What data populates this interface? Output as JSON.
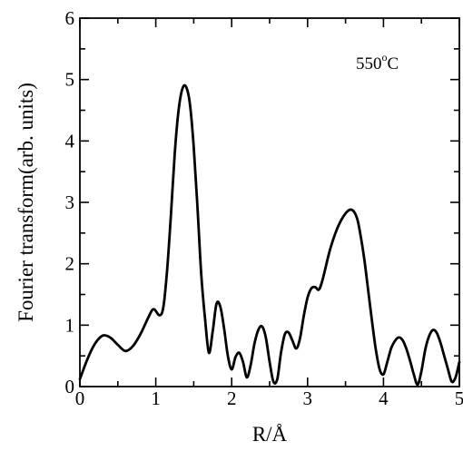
{
  "chart_data": {
    "type": "line",
    "title": "",
    "xlabel": "R/Å",
    "ylabel": "Fourier transform(arb. units)",
    "xlim": [
      0,
      5
    ],
    "ylim": [
      0,
      6
    ],
    "x_ticks": [
      "0",
      "1",
      "2",
      "3",
      "4",
      "5"
    ],
    "y_ticks": [
      "0",
      "1",
      "2",
      "3",
      "4",
      "5",
      "6"
    ],
    "grid": false,
    "annotation": {
      "base": "550",
      "sup": "o",
      "unit": "C",
      "position": "top-right"
    },
    "series": [
      {
        "color": "#000000",
        "x": [
          0.0,
          0.1,
          0.2,
          0.3,
          0.4,
          0.5,
          0.6,
          0.7,
          0.8,
          0.9,
          0.97,
          1.05,
          1.1,
          1.15,
          1.2,
          1.25,
          1.3,
          1.35,
          1.4,
          1.45,
          1.5,
          1.55,
          1.6,
          1.65,
          1.7,
          1.75,
          1.8,
          1.85,
          1.9,
          1.95,
          2.0,
          2.05,
          2.1,
          2.15,
          2.2,
          2.25,
          2.3,
          2.35,
          2.4,
          2.45,
          2.5,
          2.55,
          2.6,
          2.65,
          2.7,
          2.75,
          2.8,
          2.85,
          2.9,
          2.95,
          3.0,
          3.05,
          3.1,
          3.15,
          3.2,
          3.3,
          3.4,
          3.5,
          3.58,
          3.65,
          3.7,
          3.75,
          3.8,
          3.85,
          3.9,
          3.95,
          4.0,
          4.05,
          4.1,
          4.15,
          4.2,
          4.25,
          4.3,
          4.35,
          4.4,
          4.45,
          4.5,
          4.55,
          4.6,
          4.65,
          4.7,
          4.75,
          4.8,
          4.85,
          4.9,
          4.95,
          5.0
        ],
        "y": [
          0.12,
          0.45,
          0.7,
          0.83,
          0.8,
          0.68,
          0.58,
          0.66,
          0.86,
          1.12,
          1.26,
          1.16,
          1.3,
          1.9,
          2.8,
          3.8,
          4.5,
          4.85,
          4.88,
          4.6,
          3.9,
          2.9,
          1.8,
          1.1,
          0.55,
          0.9,
          1.35,
          1.3,
          0.95,
          0.5,
          0.28,
          0.48,
          0.55,
          0.4,
          0.15,
          0.35,
          0.7,
          0.92,
          0.98,
          0.8,
          0.4,
          0.08,
          0.12,
          0.55,
          0.85,
          0.88,
          0.75,
          0.62,
          0.78,
          1.15,
          1.45,
          1.6,
          1.62,
          1.58,
          1.75,
          2.25,
          2.6,
          2.82,
          2.88,
          2.75,
          2.45,
          2.05,
          1.55,
          1.05,
          0.6,
          0.28,
          0.2,
          0.4,
          0.62,
          0.74,
          0.8,
          0.76,
          0.62,
          0.42,
          0.2,
          0.03,
          0.25,
          0.6,
          0.82,
          0.92,
          0.88,
          0.72,
          0.5,
          0.28,
          0.08,
          0.15,
          0.4
        ]
      }
    ]
  }
}
